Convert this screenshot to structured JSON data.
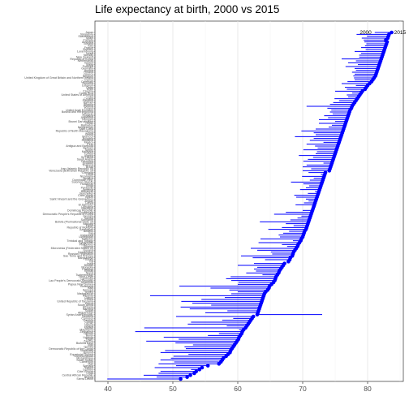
{
  "chart_data": {
    "type": "dumbbell",
    "title": "Life expectancy at birth, 2000 vs 2015",
    "xlabel": "",
    "ylabel": "",
    "xlim": [
      38,
      85.5
    ],
    "xticks": [
      40,
      50,
      60,
      70,
      80
    ],
    "grid": "vertical",
    "series": [
      {
        "name": "2000",
        "color": "#0000ff"
      },
      {
        "name": "2015",
        "color": "#0000ff"
      }
    ],
    "annotations": [
      "2000",
      "2015"
    ],
    "countries": [
      {
        "label": "Sierra Leone",
        "start": 39.9,
        "end": 51.2
      },
      {
        "label": "Angola",
        "start": 47.5,
        "end": 52.2
      },
      {
        "label": "Central African Republic",
        "start": 45.5,
        "end": 52.7
      },
      {
        "label": "Chad",
        "start": 47.8,
        "end": 53.3
      },
      {
        "label": "Côte d'Ivoire",
        "start": 48.1,
        "end": 53.6
      },
      {
        "label": "Lesotho",
        "start": 52.8,
        "end": 54.1
      },
      {
        "label": "Nigeria",
        "start": 47.2,
        "end": 54.5
      },
      {
        "label": "Somalia",
        "start": 50.5,
        "end": 55.4
      },
      {
        "label": "Mali",
        "start": 47.8,
        "end": 57.1
      },
      {
        "label": "Cameroon",
        "start": 50.2,
        "end": 57.4
      },
      {
        "label": "South Sudan",
        "start": 48.1,
        "end": 57.6
      },
      {
        "label": "Mozambique",
        "start": 49.7,
        "end": 57.8
      },
      {
        "label": "Guinea-Bissau",
        "start": 50.1,
        "end": 58.2
      },
      {
        "label": "Equatorial Guinea",
        "start": 52.4,
        "end": 58.5
      },
      {
        "label": "Burundi",
        "start": 48.1,
        "end": 58.8
      },
      {
        "label": "Swaziland",
        "start": 48.8,
        "end": 58.9
      },
      {
        "label": "Democratic Republic of the Congo",
        "start": 52.0,
        "end": 59.1
      },
      {
        "label": "Guinea",
        "start": 51.8,
        "end": 59.3
      },
      {
        "label": "Togo",
        "start": 53.1,
        "end": 59.5
      },
      {
        "label": "Burkina Faso",
        "start": 50.4,
        "end": 59.7
      },
      {
        "label": "Zambia",
        "start": 45.9,
        "end": 59.9
      },
      {
        "label": "Niger",
        "start": 50.9,
        "end": 60.1
      },
      {
        "label": "Uganda",
        "start": 48.6,
        "end": 60.2
      },
      {
        "label": "Benin",
        "start": 55.4,
        "end": 60.4
      },
      {
        "label": "Djibouti",
        "start": 57.1,
        "end": 60.6
      },
      {
        "label": "Zimbabwe",
        "start": 44.2,
        "end": 60.7
      },
      {
        "label": "Mauritania",
        "start": 60.2,
        "end": 60.9
      },
      {
        "label": "Malawi",
        "start": 45.6,
        "end": 61.2
      },
      {
        "label": "Ghana",
        "start": 58.3,
        "end": 61.4
      },
      {
        "label": "Liberia",
        "start": 52.3,
        "end": 61.6
      },
      {
        "label": "Congo",
        "start": 52.8,
        "end": 61.8
      },
      {
        "label": "Gambia",
        "start": 57.6,
        "end": 62.0
      },
      {
        "label": "Comoros",
        "start": 59.3,
        "end": 62.2
      },
      {
        "label": "Tanzania",
        "start": 50.5,
        "end": 62.4
      },
      {
        "label": "Syrian Arab Republic",
        "start": 73.0,
        "end": 63.0
      },
      {
        "label": "Afghanistan",
        "start": 55.0,
        "end": 63.1
      },
      {
        "label": "Sudan",
        "start": 58.4,
        "end": 63.2
      },
      {
        "label": "Namibia",
        "start": 52.6,
        "end": 63.3
      },
      {
        "label": "Ethiopia",
        "start": 51.2,
        "end": 63.4
      },
      {
        "label": "South Africa",
        "start": 55.9,
        "end": 63.5
      },
      {
        "label": "Kenya",
        "start": 53.0,
        "end": 63.6
      },
      {
        "label": "United Republic of Tanzania",
        "start": 51.3,
        "end": 63.7
      },
      {
        "label": "Eritrea",
        "start": 54.4,
        "end": 63.8
      },
      {
        "label": "Gabon",
        "start": 58.0,
        "end": 63.9
      },
      {
        "label": "Rwanda",
        "start": 46.5,
        "end": 64.0
      },
      {
        "label": "Madagascar",
        "start": 59.0,
        "end": 64.1
      },
      {
        "label": "Yemen",
        "start": 60.0,
        "end": 64.3
      },
      {
        "label": "Senegal",
        "start": 58.7,
        "end": 64.6
      },
      {
        "label": "Haiti",
        "start": 55.8,
        "end": 64.8
      },
      {
        "label": "Botswana",
        "start": 51.0,
        "end": 64.9
      },
      {
        "label": "Papua New Guinea",
        "start": 60.0,
        "end": 65.2
      },
      {
        "label": "Myanmar",
        "start": 60.1,
        "end": 65.5
      },
      {
        "label": "Lao People's Democratic Republic",
        "start": 59.0,
        "end": 65.7
      },
      {
        "label": "Cambodia",
        "start": 58.2,
        "end": 65.8
      },
      {
        "label": "Timor-Leste",
        "start": 58.9,
        "end": 65.9
      },
      {
        "label": "Turkmenistan",
        "start": 63.8,
        "end": 66.1
      },
      {
        "label": "Nepal",
        "start": 61.3,
        "end": 66.3
      },
      {
        "label": "Kiribati",
        "start": 62.8,
        "end": 66.4
      },
      {
        "label": "Pakistan",
        "start": 62.5,
        "end": 66.6
      },
      {
        "label": "Mongolia",
        "start": 63.0,
        "end": 66.8
      },
      {
        "label": "Bhutan",
        "start": 60.0,
        "end": 67.0
      },
      {
        "label": "India",
        "start": 62.5,
        "end": 67.2
      },
      {
        "label": "Fiji",
        "start": 67.7,
        "end": 67.8
      },
      {
        "label": "Tuvalu",
        "start": 64.2,
        "end": 68.0
      },
      {
        "label": "Bangladesh",
        "start": 62.3,
        "end": 68.1
      },
      {
        "label": "Sao Tome and Principe",
        "start": 60.5,
        "end": 68.4
      },
      {
        "label": "Russian Federation",
        "start": 65.3,
        "end": 68.5
      },
      {
        "label": "Kazakhstan",
        "start": 65.1,
        "end": 68.6
      },
      {
        "label": "Guyana",
        "start": 63.0,
        "end": 68.8
      },
      {
        "label": "Micronesia (Federated States of)",
        "start": 62.0,
        "end": 69.0
      },
      {
        "label": "Ukraine",
        "start": 67.6,
        "end": 69.2
      },
      {
        "label": "Philippines",
        "start": 66.8,
        "end": 69.3
      },
      {
        "label": "Kyrgyzstan",
        "start": 63.2,
        "end": 69.5
      },
      {
        "label": "Trinidad and Tobago",
        "start": 68.5,
        "end": 69.7
      },
      {
        "label": "Tajikistan",
        "start": 63.5,
        "end": 69.8
      },
      {
        "label": "Uzbekistan",
        "start": 66.5,
        "end": 70.0
      },
      {
        "label": "Indonesia",
        "start": 66.3,
        "end": 70.1
      },
      {
        "label": "Iraq",
        "start": 67.0,
        "end": 70.2
      },
      {
        "label": "Belarus",
        "start": 67.9,
        "end": 70.3
      },
      {
        "label": "Azerbaijan",
        "start": 64.7,
        "end": 70.5
      },
      {
        "label": "Republic of Moldova",
        "start": 66.8,
        "end": 70.6
      },
      {
        "label": "Egypt",
        "start": 68.6,
        "end": 70.7
      },
      {
        "label": "Vanuatu",
        "start": 67.4,
        "end": 70.8
      },
      {
        "label": "Bolivia (Plurinational State of)",
        "start": 63.4,
        "end": 70.9
      },
      {
        "label": "Suriname",
        "start": 68.1,
        "end": 71.0
      },
      {
        "label": "Samoa",
        "start": 69.2,
        "end": 71.1
      },
      {
        "label": "Georgia",
        "start": 69.8,
        "end": 71.2
      },
      {
        "label": "Democratic People's Republic of Korea",
        "start": 65.6,
        "end": 71.3
      },
      {
        "label": "Guatemala",
        "start": 67.4,
        "end": 71.4
      },
      {
        "label": "Dominican Republic",
        "start": 70.0,
        "end": 71.5
      },
      {
        "label": "Mauritius",
        "start": 71.5,
        "end": 71.6
      },
      {
        "label": "Lithuania",
        "start": 72.0,
        "end": 71.7
      },
      {
        "label": "El Salvador",
        "start": 68.9,
        "end": 71.8
      },
      {
        "label": "Latvia",
        "start": 70.2,
        "end": 71.9
      },
      {
        "label": "Jordan",
        "start": 70.9,
        "end": 72.0
      },
      {
        "label": "Saint Vincent and the Grenadines",
        "start": 70.5,
        "end": 72.1
      },
      {
        "label": "Belize",
        "start": 69.0,
        "end": 72.2
      },
      {
        "label": "Cabo Verde",
        "start": 68.7,
        "end": 72.3
      },
      {
        "label": "Seychelles",
        "start": 70.8,
        "end": 72.4
      },
      {
        "label": "Bahamas",
        "start": 71.9,
        "end": 72.5
      },
      {
        "label": "Armenia",
        "start": 69.6,
        "end": 72.6
      },
      {
        "label": "Paraguay",
        "start": 70.5,
        "end": 72.7
      },
      {
        "label": "Tonga",
        "start": 71.0,
        "end": 72.8
      },
      {
        "label": "Honduras",
        "start": 70.1,
        "end": 72.9
      },
      {
        "label": "Solomon Islands",
        "start": 68.2,
        "end": 73.0
      },
      {
        "label": "Dominican Rep.",
        "start": 71.1,
        "end": 73.1
      },
      {
        "label": "Jamaica",
        "start": 71.7,
        "end": 73.2
      },
      {
        "label": "Nicaragua",
        "start": 69.9,
        "end": 73.3
      },
      {
        "label": "Libya",
        "start": 72.8,
        "end": 73.4
      },
      {
        "label": "Grenada",
        "start": 70.9,
        "end": 73.5
      },
      {
        "label": "Venezuela (Bolivarian Republic of)",
        "start": 70.0,
        "end": 74.1
      },
      {
        "label": "Iran (Islamic Republic of)",
        "start": 71.3,
        "end": 74.2
      },
      {
        "label": "Brazil",
        "start": 70.0,
        "end": 74.3
      },
      {
        "label": "Thailand",
        "start": 70.6,
        "end": 74.4
      },
      {
        "label": "Ecuador",
        "start": 73.2,
        "end": 74.5
      },
      {
        "label": "Colombia",
        "start": 70.1,
        "end": 74.6
      },
      {
        "label": "Saudi Arabia",
        "start": 70.8,
        "end": 74.7
      },
      {
        "label": "Sri Lanka",
        "start": 71.6,
        "end": 74.8
      },
      {
        "label": "Algeria",
        "start": 69.4,
        "end": 74.9
      },
      {
        "label": "Tunisia",
        "start": 72.0,
        "end": 75.0
      },
      {
        "label": "Malaysia",
        "start": 72.2,
        "end": 75.1
      },
      {
        "label": "Turkey",
        "start": 70.1,
        "end": 75.2
      },
      {
        "label": "Vietnam",
        "start": 72.3,
        "end": 75.3
      },
      {
        "label": "Antigua and Barbuda",
        "start": 71.9,
        "end": 75.4
      },
      {
        "label": "Peru",
        "start": 70.6,
        "end": 75.5
      },
      {
        "label": "Mexico",
        "start": 73.2,
        "end": 75.6
      },
      {
        "label": "Romania",
        "start": 71.1,
        "end": 75.7
      },
      {
        "label": "Bulgaria",
        "start": 71.7,
        "end": 75.8
      },
      {
        "label": "Morocco",
        "start": 68.8,
        "end": 75.9
      },
      {
        "label": "Serbia",
        "start": 72.0,
        "end": 76.0
      },
      {
        "label": "China",
        "start": 71.7,
        "end": 76.1
      },
      {
        "label": "Republic of North Macedonia",
        "start": 69.8,
        "end": 76.2
      },
      {
        "label": "Saint Lucia",
        "start": 72.0,
        "end": 76.3
      },
      {
        "label": "Montenegro",
        "start": 74.0,
        "end": 76.4
      },
      {
        "label": "Barbados",
        "start": 74.5,
        "end": 76.5
      },
      {
        "label": "Oman",
        "start": 72.5,
        "end": 76.6
      },
      {
        "label": "Brunei Darussalam",
        "start": 75.0,
        "end": 76.7
      },
      {
        "label": "Hungary",
        "start": 72.5,
        "end": 76.8
      },
      {
        "label": "Argentina",
        "start": 73.9,
        "end": 76.9
      },
      {
        "label": "Slovakia",
        "start": 73.3,
        "end": 77.0
      },
      {
        "label": "Uruguay",
        "start": 74.6,
        "end": 77.1
      },
      {
        "label": "Bosnia and Herzegovina",
        "start": 74.2,
        "end": 77.2
      },
      {
        "label": "United Arab Emirates",
        "start": 74.4,
        "end": 77.3
      },
      {
        "label": "Poland",
        "start": 73.8,
        "end": 77.5
      },
      {
        "label": "Estonia",
        "start": 70.6,
        "end": 77.6
      },
      {
        "label": "Albania",
        "start": 74.2,
        "end": 77.8
      },
      {
        "label": "Bahrain",
        "start": 74.7,
        "end": 78.0
      },
      {
        "label": "Panama",
        "start": 75.6,
        "end": 78.2
      },
      {
        "label": "Croatia",
        "start": 74.9,
        "end": 78.4
      },
      {
        "label": "Cuba",
        "start": 77.0,
        "end": 78.6
      },
      {
        "label": "United States of America",
        "start": 76.8,
        "end": 78.8
      },
      {
        "label": "Costa Rica",
        "start": 77.6,
        "end": 79.0
      },
      {
        "label": "Czechia",
        "start": 75.0,
        "end": 79.2
      },
      {
        "label": "Chile",
        "start": 76.8,
        "end": 79.6
      },
      {
        "label": "Qatar",
        "start": 76.5,
        "end": 79.8
      },
      {
        "label": "Lebanon",
        "start": 78.2,
        "end": 80.0
      },
      {
        "label": "Slovenia",
        "start": 76.0,
        "end": 80.3
      },
      {
        "label": "Denmark",
        "start": 76.9,
        "end": 80.6
      },
      {
        "label": "Cyprus",
        "start": 78.0,
        "end": 80.8
      },
      {
        "label": "United Kingdom of Great Britain and Northern Ireland",
        "start": 77.9,
        "end": 81.0
      },
      {
        "label": "Belgium",
        "start": 77.8,
        "end": 81.2
      },
      {
        "label": "Greece",
        "start": 78.0,
        "end": 81.3
      },
      {
        "label": "Finland",
        "start": 77.6,
        "end": 81.4
      },
      {
        "label": "Austria",
        "start": 78.2,
        "end": 81.5
      },
      {
        "label": "Germany",
        "start": 78.0,
        "end": 81.6
      },
      {
        "label": "Portugal",
        "start": 76.6,
        "end": 81.7
      },
      {
        "label": "Malta",
        "start": 78.5,
        "end": 81.8
      },
      {
        "label": "Ireland",
        "start": 77.0,
        "end": 81.9
      },
      {
        "label": "Netherlands",
        "start": 78.2,
        "end": 82.0
      },
      {
        "label": "Republic of Korea",
        "start": 76.0,
        "end": 82.1
      },
      {
        "label": "New Zealand",
        "start": 78.7,
        "end": 82.2
      },
      {
        "label": "Norway",
        "start": 78.7,
        "end": 82.3
      },
      {
        "label": "Israel",
        "start": 79.0,
        "end": 82.4
      },
      {
        "label": "Luxembourg",
        "start": 78.0,
        "end": 82.5
      },
      {
        "label": "Sweden",
        "start": 79.7,
        "end": 82.6
      },
      {
        "label": "France",
        "start": 79.0,
        "end": 82.7
      },
      {
        "label": "Italy",
        "start": 79.6,
        "end": 82.8
      },
      {
        "label": "Iceland",
        "start": 79.8,
        "end": 82.9
      },
      {
        "label": "Australia",
        "start": 79.5,
        "end": 83.0
      },
      {
        "label": "Canada",
        "start": 79.4,
        "end": 82.8
      },
      {
        "label": "Spain",
        "start": 79.1,
        "end": 83.1
      },
      {
        "label": "Switzerland",
        "start": 79.9,
        "end": 83.2
      },
      {
        "label": "Singapore",
        "start": 78.3,
        "end": 83.3
      },
      {
        "label": "Japan",
        "start": 81.1,
        "end": 83.7
      }
    ]
  }
}
